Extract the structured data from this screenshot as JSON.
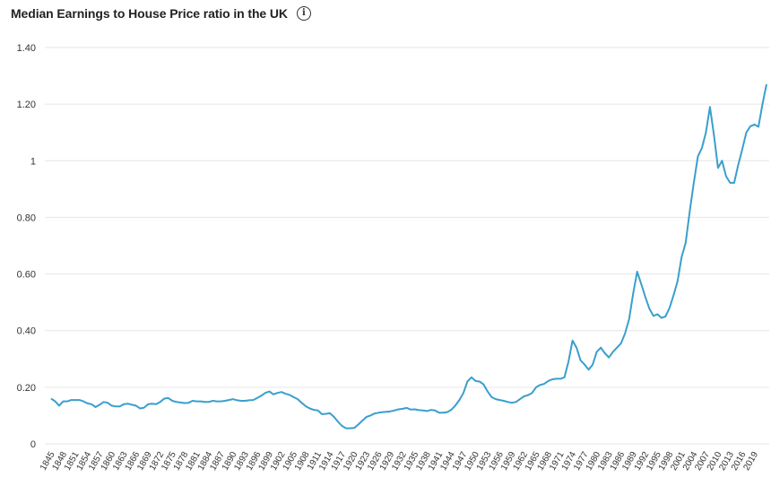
{
  "header": {
    "title": "Median Earnings to House Price ratio in the UK",
    "info_icon": "info-circle-icon"
  },
  "colors": {
    "line": "#3a9fcd",
    "grid": "#e6e6e6",
    "text": "#333333"
  },
  "chart_data": {
    "type": "line",
    "title": "Median Earnings to House Price ratio in the UK",
    "xlabel": "",
    "ylabel": "",
    "xlim": [
      1845,
      2021
    ],
    "ylim": [
      0,
      1.4
    ],
    "grid": true,
    "y_ticks": [
      {
        "value": 0,
        "label": "0"
      },
      {
        "value": 0.2,
        "label": "0.20"
      },
      {
        "value": 0.4,
        "label": "0.40"
      },
      {
        "value": 0.6,
        "label": "0.60"
      },
      {
        "value": 0.8,
        "label": "0.80"
      },
      {
        "value": 1.0,
        "label": "1"
      },
      {
        "value": 1.2,
        "label": "1.20"
      },
      {
        "value": 1.4,
        "label": "1.40"
      }
    ],
    "x_ticks": [
      "1845",
      "1848",
      "1851",
      "1854",
      "1857",
      "1860",
      "1863",
      "1866",
      "1869",
      "1872",
      "1875",
      "1878",
      "1881",
      "1884",
      "1887",
      "1890",
      "1893",
      "1896",
      "1899",
      "1902",
      "1905",
      "1908",
      "1911",
      "1914",
      "1917",
      "1920",
      "1923",
      "1926",
      "1929",
      "1932",
      "1935",
      "1938",
      "1941",
      "1944",
      "1947",
      "1950",
      "1953",
      "1956",
      "1959",
      "1962",
      "1965",
      "1968",
      "1971",
      "1974",
      "1977",
      "1980",
      "1983",
      "1986",
      "1989",
      "1992",
      "1995",
      "1998",
      "2001",
      "2004",
      "2007",
      "2010",
      "2013",
      "2016",
      "2019"
    ],
    "series": [
      {
        "points": [
          [
            1845,
            0.16
          ],
          [
            1846,
            0.15
          ],
          [
            1847,
            0.135
          ],
          [
            1848,
            0.15
          ],
          [
            1849,
            0.15
          ],
          [
            1850,
            0.155
          ],
          [
            1851,
            0.155
          ],
          [
            1852,
            0.155
          ],
          [
            1853,
            0.15
          ],
          [
            1854,
            0.143
          ],
          [
            1855,
            0.14
          ],
          [
            1856,
            0.13
          ],
          [
            1857,
            0.138
          ],
          [
            1858,
            0.148
          ],
          [
            1859,
            0.145
          ],
          [
            1860,
            0.135
          ],
          [
            1861,
            0.132
          ],
          [
            1862,
            0.132
          ],
          [
            1863,
            0.14
          ],
          [
            1864,
            0.142
          ],
          [
            1865,
            0.138
          ],
          [
            1866,
            0.135
          ],
          [
            1867,
            0.125
          ],
          [
            1868,
            0.128
          ],
          [
            1869,
            0.14
          ],
          [
            1870,
            0.142
          ],
          [
            1871,
            0.14
          ],
          [
            1872,
            0.148
          ],
          [
            1873,
            0.16
          ],
          [
            1874,
            0.162
          ],
          [
            1875,
            0.152
          ],
          [
            1876,
            0.148
          ],
          [
            1877,
            0.146
          ],
          [
            1878,
            0.144
          ],
          [
            1879,
            0.145
          ],
          [
            1880,
            0.152
          ],
          [
            1881,
            0.15
          ],
          [
            1882,
            0.15
          ],
          [
            1883,
            0.148
          ],
          [
            1884,
            0.148
          ],
          [
            1885,
            0.152
          ],
          [
            1886,
            0.15
          ],
          [
            1887,
            0.15
          ],
          [
            1888,
            0.152
          ],
          [
            1889,
            0.155
          ],
          [
            1890,
            0.158
          ],
          [
            1891,
            0.154
          ],
          [
            1892,
            0.152
          ],
          [
            1893,
            0.152
          ],
          [
            1894,
            0.154
          ],
          [
            1895,
            0.155
          ],
          [
            1896,
            0.162
          ],
          [
            1897,
            0.17
          ],
          [
            1898,
            0.18
          ],
          [
            1899,
            0.185
          ],
          [
            1900,
            0.175
          ],
          [
            1901,
            0.18
          ],
          [
            1902,
            0.183
          ],
          [
            1903,
            0.177
          ],
          [
            1904,
            0.173
          ],
          [
            1905,
            0.165
          ],
          [
            1906,
            0.158
          ],
          [
            1907,
            0.145
          ],
          [
            1908,
            0.133
          ],
          [
            1909,
            0.125
          ],
          [
            1910,
            0.12
          ],
          [
            1911,
            0.118
          ],
          [
            1912,
            0.105
          ],
          [
            1913,
            0.106
          ],
          [
            1914,
            0.108
          ],
          [
            1915,
            0.095
          ],
          [
            1916,
            0.078
          ],
          [
            1917,
            0.063
          ],
          [
            1918,
            0.055
          ],
          [
            1919,
            0.055
          ],
          [
            1920,
            0.056
          ],
          [
            1921,
            0.068
          ],
          [
            1922,
            0.082
          ],
          [
            1923,
            0.095
          ],
          [
            1924,
            0.1
          ],
          [
            1925,
            0.107
          ],
          [
            1926,
            0.11
          ],
          [
            1927,
            0.112
          ],
          [
            1928,
            0.113
          ],
          [
            1929,
            0.115
          ],
          [
            1930,
            0.118
          ],
          [
            1931,
            0.122
          ],
          [
            1932,
            0.124
          ],
          [
            1933,
            0.127
          ],
          [
            1934,
            0.121
          ],
          [
            1935,
            0.122
          ],
          [
            1936,
            0.119
          ],
          [
            1937,
            0.118
          ],
          [
            1938,
            0.116
          ],
          [
            1939,
            0.12
          ],
          [
            1940,
            0.118
          ],
          [
            1941,
            0.11
          ],
          [
            1942,
            0.11
          ],
          [
            1943,
            0.112
          ],
          [
            1944,
            0.12
          ],
          [
            1945,
            0.135
          ],
          [
            1946,
            0.155
          ],
          [
            1947,
            0.18
          ],
          [
            1948,
            0.22
          ],
          [
            1949,
            0.235
          ],
          [
            1950,
            0.222
          ],
          [
            1951,
            0.22
          ],
          [
            1952,
            0.21
          ],
          [
            1953,
            0.185
          ],
          [
            1954,
            0.165
          ],
          [
            1955,
            0.158
          ],
          [
            1956,
            0.155
          ],
          [
            1957,
            0.152
          ],
          [
            1958,
            0.148
          ],
          [
            1959,
            0.145
          ],
          [
            1960,
            0.148
          ],
          [
            1961,
            0.158
          ],
          [
            1962,
            0.168
          ],
          [
            1963,
            0.172
          ],
          [
            1964,
            0.18
          ],
          [
            1965,
            0.2
          ],
          [
            1966,
            0.208
          ],
          [
            1967,
            0.212
          ],
          [
            1968,
            0.222
          ],
          [
            1969,
            0.228
          ],
          [
            1970,
            0.23
          ],
          [
            1971,
            0.23
          ],
          [
            1972,
            0.235
          ],
          [
            1973,
            0.29
          ],
          [
            1974,
            0.365
          ],
          [
            1975,
            0.34
          ],
          [
            1976,
            0.295
          ],
          [
            1977,
            0.28
          ],
          [
            1978,
            0.262
          ],
          [
            1979,
            0.28
          ],
          [
            1980,
            0.325
          ],
          [
            1981,
            0.34
          ],
          [
            1982,
            0.32
          ],
          [
            1983,
            0.305
          ],
          [
            1984,
            0.325
          ],
          [
            1985,
            0.34
          ],
          [
            1986,
            0.355
          ],
          [
            1987,
            0.39
          ],
          [
            1988,
            0.44
          ],
          [
            1989,
            0.53
          ],
          [
            1990,
            0.608
          ],
          [
            1991,
            0.565
          ],
          [
            1992,
            0.52
          ],
          [
            1993,
            0.478
          ],
          [
            1994,
            0.452
          ],
          [
            1995,
            0.458
          ],
          [
            1996,
            0.445
          ],
          [
            1997,
            0.45
          ],
          [
            1998,
            0.48
          ],
          [
            1999,
            0.525
          ],
          [
            2000,
            0.575
          ],
          [
            2001,
            0.66
          ],
          [
            2002,
            0.71
          ],
          [
            2003,
            0.82
          ],
          [
            2004,
            0.92
          ],
          [
            2005,
            1.015
          ],
          [
            2006,
            1.045
          ],
          [
            2007,
            1.1
          ],
          [
            2008,
            1.19
          ],
          [
            2009,
            1.09
          ],
          [
            2010,
            0.975
          ],
          [
            2011,
            1.0
          ],
          [
            2012,
            0.945
          ],
          [
            2013,
            0.922
          ],
          [
            2014,
            0.922
          ],
          [
            2015,
            0.985
          ],
          [
            2016,
            1.04
          ],
          [
            2017,
            1.1
          ],
          [
            2018,
            1.122
          ],
          [
            2019,
            1.128
          ],
          [
            2020,
            1.12
          ],
          [
            2021,
            1.2
          ],
          [
            2022,
            1.27
          ]
        ]
      }
    ]
  }
}
